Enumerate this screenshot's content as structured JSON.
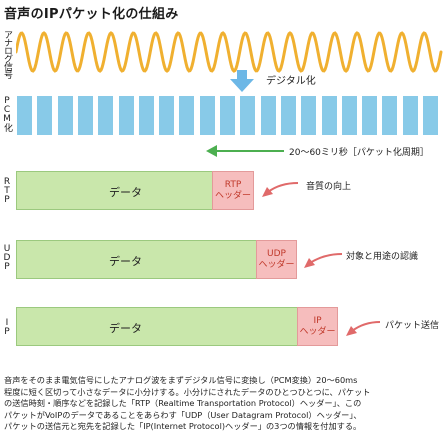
{
  "title": "音声のIPパケット化の仕組み",
  "rows": {
    "analog_label": "アナログ信号",
    "pcm_label": "PCM化",
    "rtp_label": "RTP",
    "udp_label": "UDP",
    "ip_label": "IP"
  },
  "digitize_label": "デジタル化",
  "period_label": "20～60ミリ秒［パケット化周期］",
  "packets": [
    {
      "data_label": "データ",
      "header_l1": "RTP",
      "header_l2": "ヘッダー",
      "note": "音質の向上"
    },
    {
      "data_label": "データ",
      "header_l1": "UDP",
      "header_l2": "ヘッダー",
      "note": "対象と用途の認識"
    },
    {
      "data_label": "データ",
      "header_l1": "IP",
      "header_l2": "ヘッダー",
      "note": "パケット送信"
    }
  ],
  "description": [
    "音声をそのまま電気信号にしたアナログ波をまずデジタル信号に変換し（PCM変換）20～60ms",
    "程度に短く区切って小さなデータに小分けする。小分けにされたデータのひとつひとつに、パケット",
    "の送信時刻・順序などを記録した「RTP（Realtime Transportation Protocol）ヘッダー」、この",
    "パケットがVoIPのデータであることをあらわす「UDP（User Datagram Protocol）ヘッダー」、",
    "パケットの送信元と宛先を記録した「IP(Internet Protocol)ヘッダー」の3つの情報を付加する。"
  ],
  "colors": {
    "wave": "#f0b030",
    "pcm": "#88cae8",
    "data_fill": "#c9e7ab",
    "header_fill": "#f6bdbd",
    "header_text": "#c0392b",
    "arrow_green": "#4caf50",
    "arrow_red": "#e06a6a",
    "arrow_blue": "#6cb7e6"
  }
}
